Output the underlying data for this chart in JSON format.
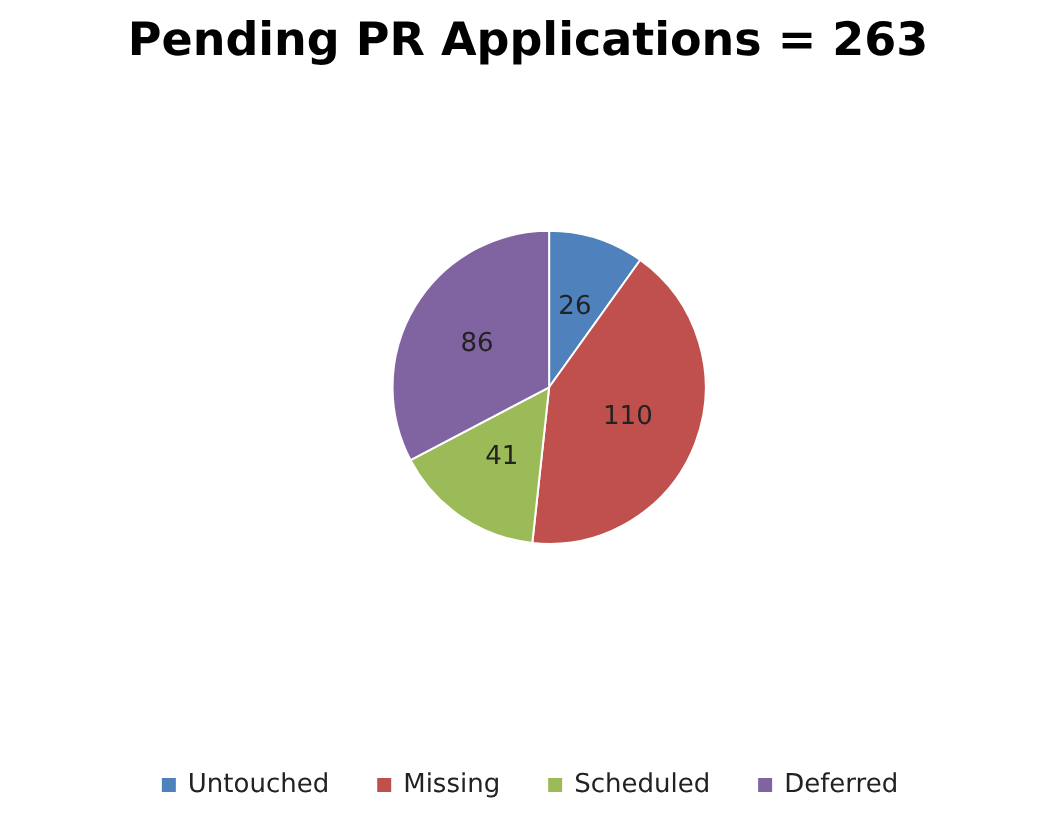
{
  "chart_data": {
    "type": "pie",
    "title": "Pending PR Applications = 263",
    "categories": [
      "Untouched",
      "Missing",
      "Scheduled",
      "Deferred"
    ],
    "values": [
      26,
      110,
      41,
      86
    ],
    "colors": [
      "#4f81bd",
      "#c0504d",
      "#9bbb59",
      "#8064a2"
    ],
    "data_labels": true,
    "legend": "bottom"
  }
}
